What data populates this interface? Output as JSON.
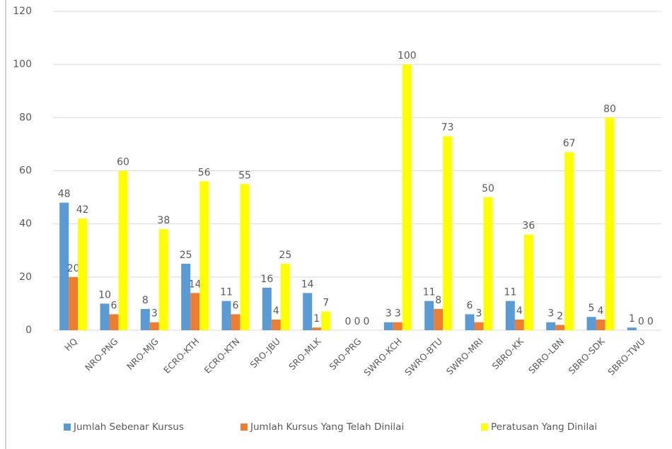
{
  "chart_data": {
    "type": "bar",
    "categories": [
      "HQ",
      "NRO-PNG",
      "NRO-MJG",
      "ECRO-KTH",
      "ECRO-KTN",
      "SRO-JBU",
      "SRO-MLK",
      "SRO-PRG",
      "SWRO-KCH",
      "SWRO-BTU",
      "SWRO-MRI",
      "SBRO-KK",
      "SBRO-LBN",
      "SBRO-SDK",
      "SBRO-TWU"
    ],
    "series": [
      {
        "name": "Jumlah Sebenar Kursus",
        "color": "#5b9bd5",
        "values": [
          48,
          10,
          8,
          25,
          11,
          16,
          14,
          0,
          3,
          11,
          6,
          11,
          3,
          5,
          1
        ]
      },
      {
        "name": "Jumlah Kursus Yang Telah Dinilai",
        "color": "#ed7d31",
        "values": [
          20,
          6,
          3,
          14,
          6,
          4,
          1,
          0,
          3,
          8,
          3,
          4,
          2,
          4,
          0
        ]
      },
      {
        "name": "Peratusan Yang Dinilai",
        "color": "#ffff00",
        "values": [
          42,
          60,
          38,
          56,
          55,
          25,
          7,
          0,
          100,
          73,
          50,
          36,
          67,
          80,
          0
        ]
      }
    ],
    "ylim": [
      0,
      120
    ],
    "yticks": [
      0,
      20,
      40,
      60,
      80,
      100,
      120
    ],
    "grid": true,
    "legend": "bottom"
  }
}
